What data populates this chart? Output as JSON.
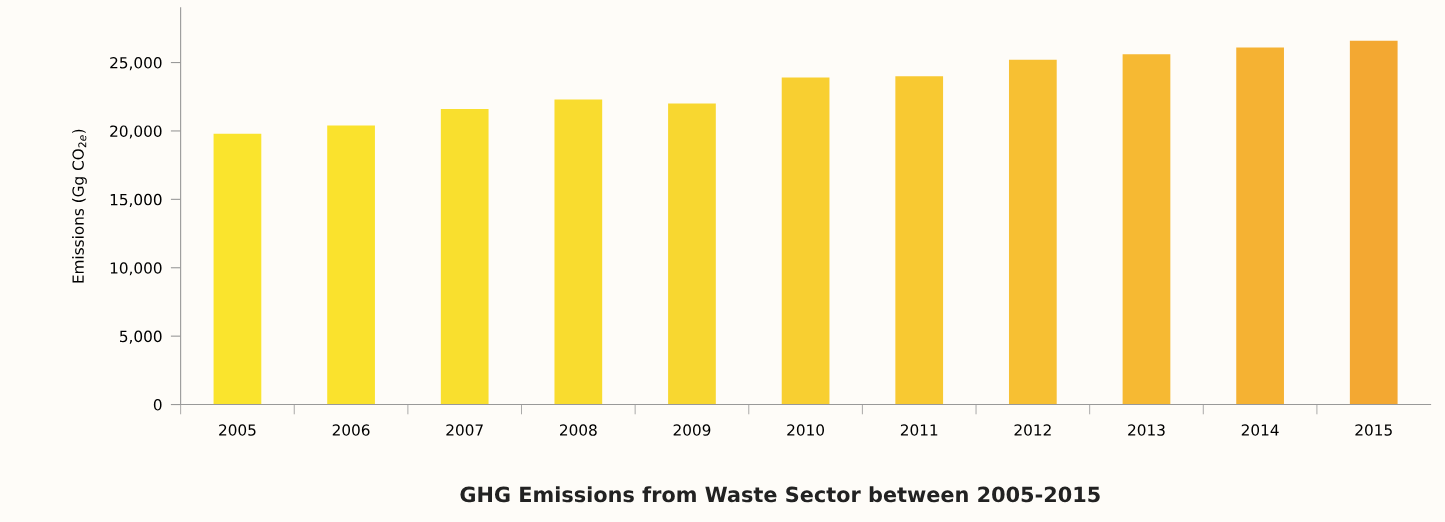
{
  "chart_data": {
    "type": "bar",
    "title": "GHG Emissions from Waste Sector between 2005-2015",
    "ylabel": "Emissions (Gg CO$_{2e}$)",
    "categories": [
      "2005",
      "2006",
      "2007",
      "2008",
      "2009",
      "2010",
      "2011",
      "2012",
      "2013",
      "2014",
      "2015"
    ],
    "values": [
      19800,
      20400,
      21600,
      22300,
      22000,
      23900,
      24000,
      25200,
      25600,
      26100,
      26600
    ],
    "colors": [
      "#fae42d",
      "#fae22d",
      "#f9df2e",
      "#f9dc2f",
      "#f8d730",
      "#f8cf31",
      "#f8c932",
      "#f7c033",
      "#f6b933",
      "#f5b233",
      "#f3a832"
    ],
    "ylim": [
      0,
      29000
    ],
    "yticks": [
      {
        "value": 0,
        "label": "0"
      },
      {
        "value": 5000,
        "label": "5,000"
      },
      {
        "value": 10000,
        "label": "10,000"
      },
      {
        "value": 15000,
        "label": "15,000"
      },
      {
        "value": 20000,
        "label": "20,000"
      },
      {
        "value": 25000,
        "label": "25,000"
      }
    ],
    "grid": false,
    "legend": false
  }
}
